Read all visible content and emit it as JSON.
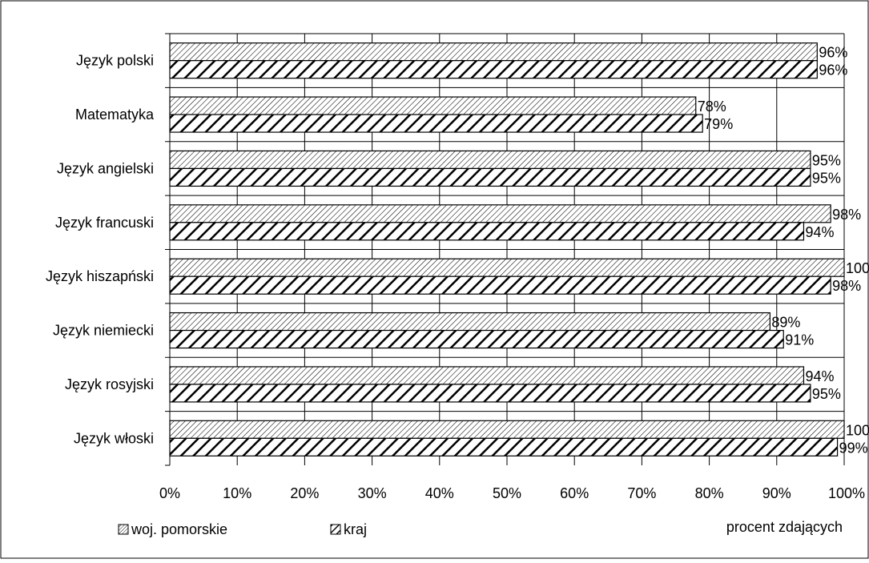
{
  "chart_data": {
    "type": "bar",
    "orientation": "horizontal",
    "categories": [
      "Język polski",
      "Matematyka",
      "Język angielski",
      "Język francuski",
      "Język hiszapński",
      "Język niemiecki",
      "Język rosyjski",
      "Język włoski"
    ],
    "series": [
      {
        "name": "woj. pomorskie",
        "pattern": "fine-hatch",
        "values": [
          96,
          78,
          95,
          98,
          100,
          89,
          94,
          100
        ]
      },
      {
        "name": "kraj",
        "pattern": "bold-hatch",
        "values": [
          96,
          79,
          95,
          94,
          98,
          91,
          95,
          99
        ]
      }
    ],
    "x_ticks": [
      0,
      10,
      20,
      30,
      40,
      50,
      60,
      70,
      80,
      90,
      100
    ],
    "tick_suffix": "%",
    "data_label_suffix": "%",
    "xlim": [
      0,
      100
    ],
    "xlabel": "procent zdających",
    "title": "",
    "grid": "vertical",
    "legend_position": "bottom-left",
    "colors": {
      "bar_fill": "#ffffff",
      "hatch": "#000000",
      "grid": "#000000",
      "frame": "#000000"
    }
  }
}
